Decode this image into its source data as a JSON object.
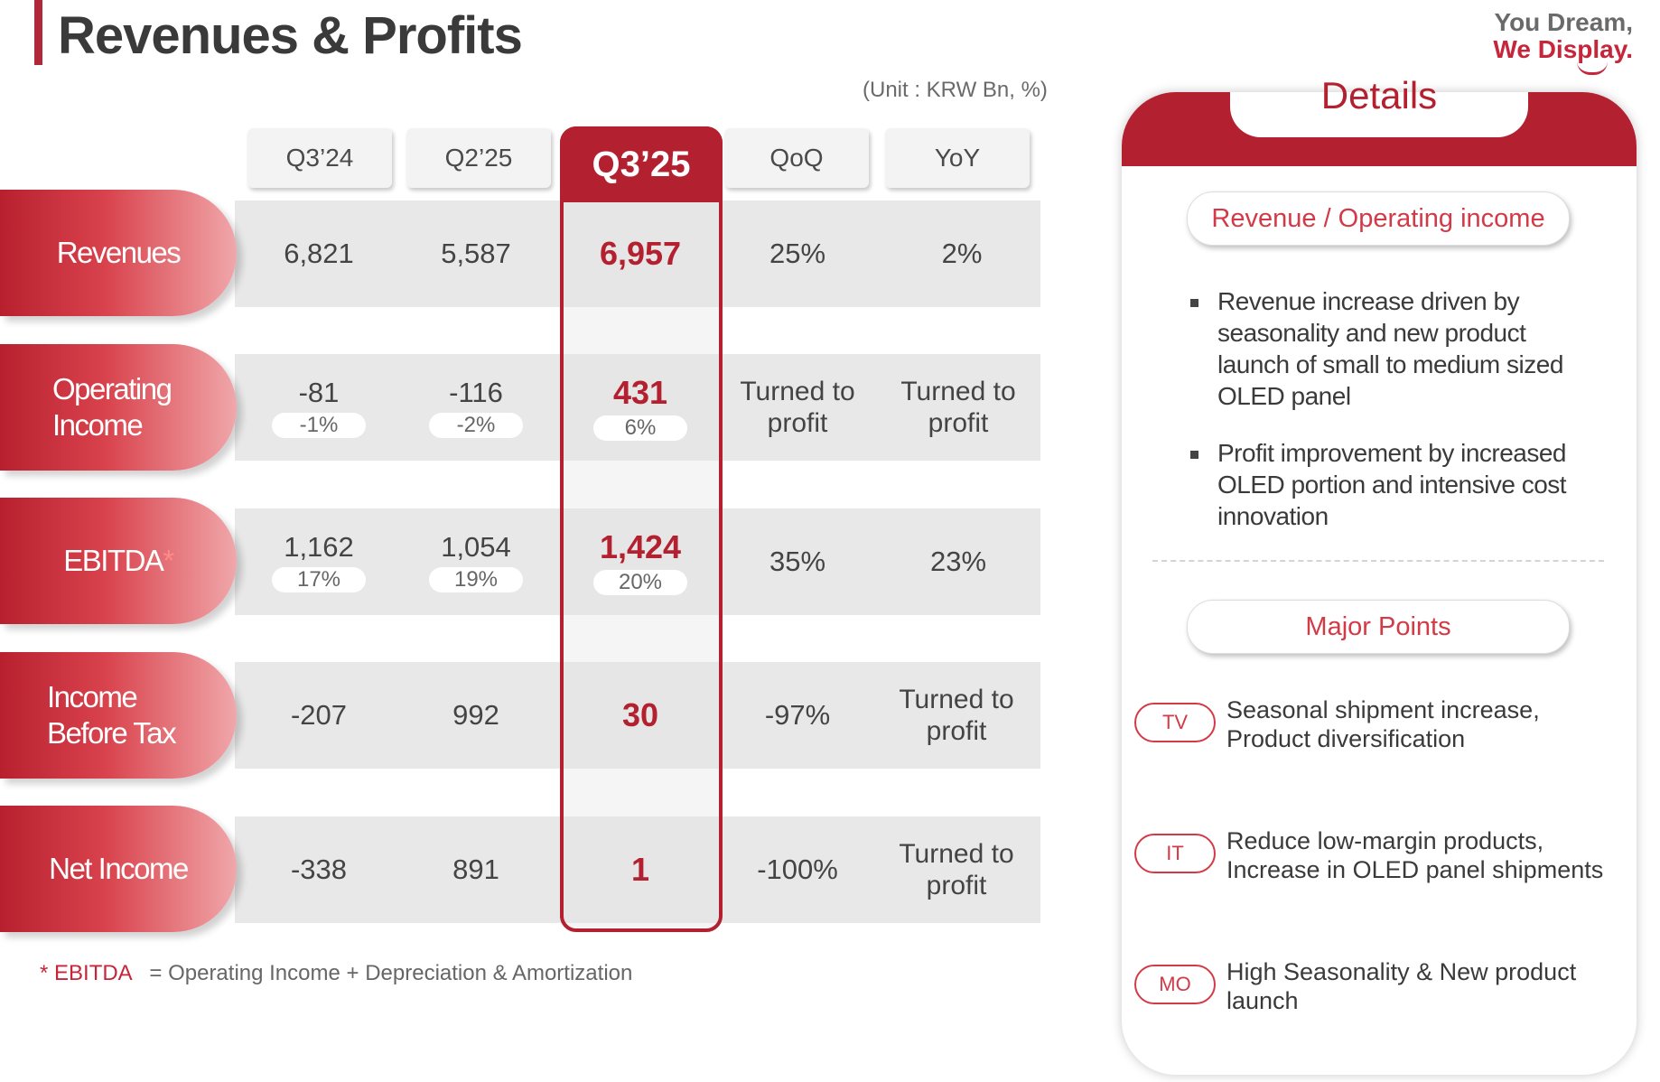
{
  "header": {
    "title": "Revenues & Profits",
    "slogan_line1": "You Dream,",
    "slogan_line2": "We Display.",
    "unit": "(Unit : KRW Bn, %)"
  },
  "table": {
    "columns": [
      "Q3’24",
      "Q2’25",
      "Q3’25",
      "QoQ",
      "YoY"
    ],
    "rows": [
      {
        "label": "Revenues",
        "values": [
          "6,821",
          "5,587",
          "6,957",
          "25%",
          "2%"
        ],
        "margins": [
          "",
          "",
          ""
        ]
      },
      {
        "label_l1": "Operating",
        "label_l2": "Income",
        "values": [
          "-81",
          "-116",
          "431"
        ],
        "margins": [
          "-1%",
          "-2%",
          "6%"
        ],
        "qoq_l1": "Turned to",
        "qoq_l2": "profit",
        "yoy_l1": "Turned to",
        "yoy_l2": "profit"
      },
      {
        "label": "EBITDA",
        "label_star": "*",
        "values": [
          "1,162",
          "1,054",
          "1,424",
          "35%",
          "23%"
        ],
        "margins": [
          "17%",
          "19%",
          "20%"
        ]
      },
      {
        "label_l1": "Income",
        "label_l2": "Before Tax",
        "values": [
          "-207",
          "992",
          "30",
          "-97%"
        ],
        "yoy_l1": "Turned to",
        "yoy_l2": "profit"
      },
      {
        "label": "Net Income",
        "values": [
          "-338",
          "891",
          "1",
          "-100%"
        ],
        "yoy_l1": "Turned to",
        "yoy_l2": "profit"
      }
    ]
  },
  "footnote": {
    "key": "* EBITDA",
    "text": "=  Operating Income + Depreciation & Amortization"
  },
  "details": {
    "title": "Details",
    "section1": "Revenue / Operating income",
    "bullets": [
      "Revenue increase driven by seasonality and new product launch of small to medium sized OLED panel",
      "Profit improvement by increased OLED portion and intensive cost innovation"
    ],
    "section2": "Major Points",
    "points": [
      {
        "tag": "TV",
        "l1": "Seasonal shipment increase,",
        "l2": "Product diversification"
      },
      {
        "tag": "IT",
        "l1": "Reduce low-margin products,",
        "l2": "Increase in OLED panel shipments"
      },
      {
        "tag": "MO",
        "l1": "High Seasonality & New product",
        "l2": "launch"
      }
    ]
  },
  "colors": {
    "accent": "#b3202f",
    "band": "#e8e8e8",
    "header_cell": "#f3f3f3"
  }
}
